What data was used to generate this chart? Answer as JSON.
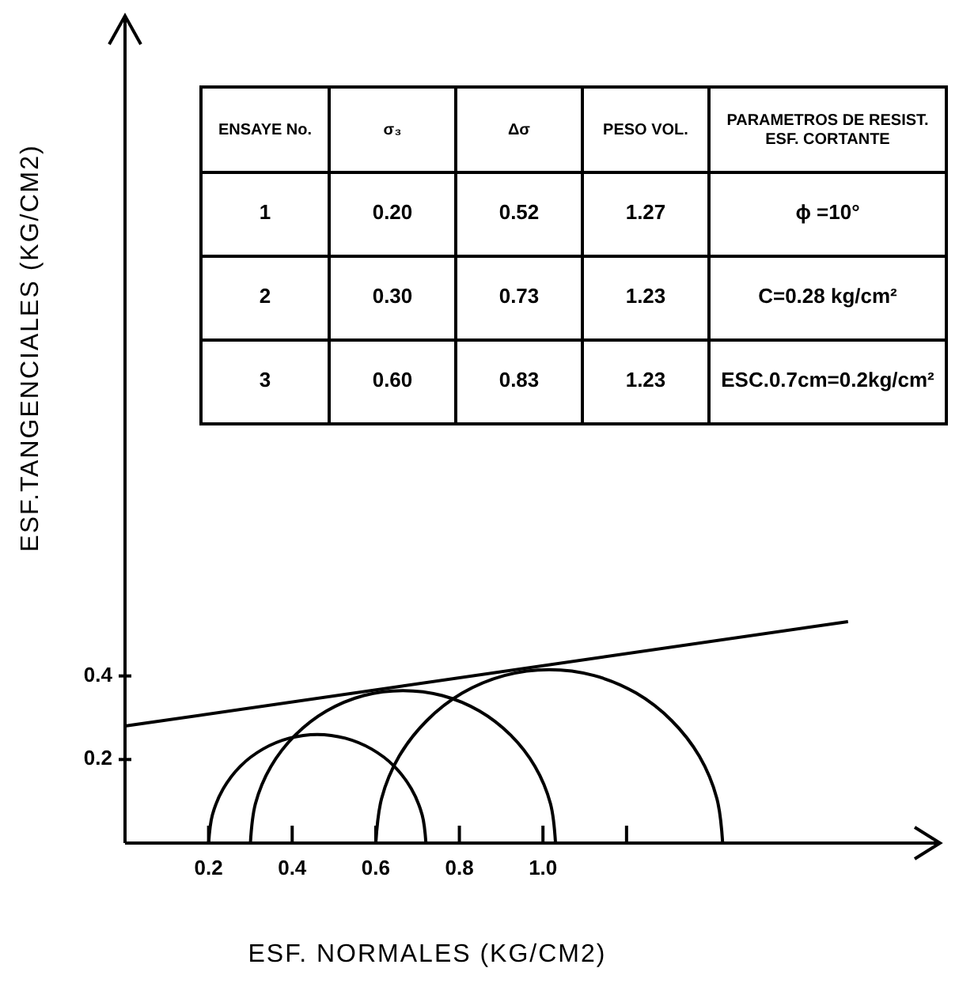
{
  "chart_data": {
    "type": "line",
    "xlabel": "ESF. NORMALES (KG/CM2)",
    "ylabel": "ESF.TANGENCIALES (KG/CM2)",
    "xlim": [
      0,
      1.95
    ],
    "ylim": [
      0,
      1.98
    ],
    "xticks": [
      0.2,
      0.4,
      0.6,
      0.8,
      {
        "value": 1.0,
        "label": "1.0"
      },
      {
        "value": 1.2,
        "label": null
      }
    ],
    "yticks": [
      0.2,
      0.4
    ],
    "series": [
      {
        "color": "#000000",
        "x": [
          0.2,
          0.209,
          0.235,
          0.276,
          0.33,
          0.393,
          0.46,
          0.527,
          0.59,
          0.644,
          0.685,
          0.711,
          0.72
        ],
        "values": [
          0,
          0.067,
          0.13,
          0.184,
          0.225,
          0.251,
          0.26,
          0.251,
          0.225,
          0.184,
          0.13,
          0.067,
          0
        ]
      },
      {
        "color": "#000000",
        "x": [
          0.3,
          0.312,
          0.349,
          0.407,
          0.482,
          0.571,
          0.665,
          0.759,
          0.848,
          0.923,
          0.981,
          1.018,
          1.03
        ],
        "values": [
          0,
          0.094,
          0.183,
          0.258,
          0.316,
          0.353,
          0.365,
          0.353,
          0.316,
          0.258,
          0.183,
          0.094,
          0
        ]
      },
      {
        "color": "#000000",
        "x": [
          0.6,
          0.614,
          0.656,
          0.722,
          0.807,
          0.908,
          1.015,
          1.122,
          1.223,
          1.308,
          1.374,
          1.416,
          1.43
        ],
        "values": [
          0,
          0.107,
          0.208,
          0.293,
          0.359,
          0.401,
          0.415,
          0.401,
          0.359,
          0.293,
          0.208,
          0.107,
          0
        ]
      },
      {
        "color": "#000000",
        "x": [
          0,
          1.73
        ],
        "values": [
          0.28,
          0.53
        ]
      }
    ],
    "annotations": [
      "ENSAYE No.",
      "σ₃",
      "Δσ",
      "PESO VOL.",
      "PARAMETROS DE RESIST.\nESF. CORTANTE",
      "1",
      "0.20",
      "0.52",
      "1.27",
      "ϕ =10°",
      "2",
      "0.30",
      "0.73",
      "1.23",
      "C=0.28 kg/cm²",
      "3",
      "0.60",
      "0.83",
      "1.23",
      "ESC.0.7cm=0.2kg/cm²"
    ]
  }
}
